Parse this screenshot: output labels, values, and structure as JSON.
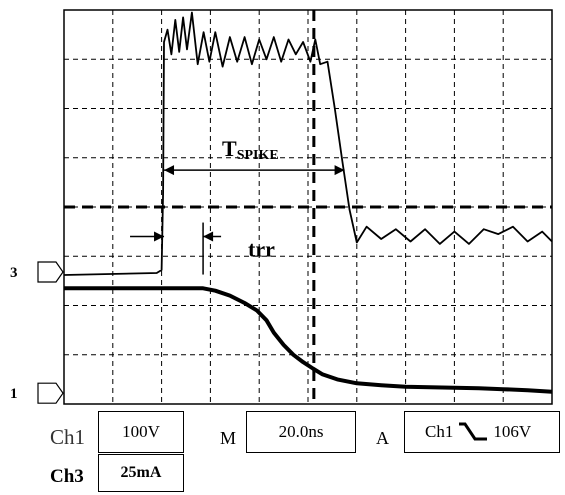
{
  "chart_data": {
    "type": "line",
    "title": "",
    "xlabel": "",
    "ylabel": "",
    "grid": true,
    "grid_divisions": {
      "x": 10,
      "y": 8
    },
    "xlim": [
      0,
      10
    ],
    "ylim": [
      0,
      8
    ],
    "channel_markers": [
      {
        "label": "3",
        "y": 2.68
      },
      {
        "label": "1",
        "y": 0.22
      }
    ],
    "series": [
      {
        "x": [
          0,
          1.9,
          2.0,
          2.03,
          2.05,
          2.12,
          2.2,
          2.28,
          2.36,
          2.44,
          2.52,
          2.62,
          2.74,
          2.86,
          2.98,
          3.1,
          3.25,
          3.4,
          3.55,
          3.7,
          3.85,
          4.0,
          4.15,
          4.3,
          4.45,
          4.6,
          4.75,
          4.9,
          5.05,
          5.15,
          5.25,
          5.4,
          5.55,
          5.7,
          5.85,
          6.0,
          6.2,
          6.5,
          6.8,
          7.1,
          7.4,
          7.7,
          8.0,
          8.3,
          8.6,
          8.9,
          9.2,
          9.5,
          9.8,
          10.0
        ],
        "y": [
          2.62,
          2.66,
          2.72,
          4.3,
          7.35,
          7.6,
          7.1,
          7.8,
          7.15,
          7.85,
          7.2,
          7.95,
          6.9,
          7.55,
          6.95,
          7.55,
          6.85,
          7.45,
          6.95,
          7.45,
          6.9,
          7.4,
          7.0,
          7.45,
          6.95,
          7.4,
          7.1,
          7.35,
          6.95,
          7.4,
          6.9,
          6.95,
          6.0,
          4.95,
          3.95,
          3.28,
          3.6,
          3.35,
          3.55,
          3.3,
          3.55,
          3.25,
          3.5,
          3.25,
          3.55,
          3.45,
          3.6,
          3.3,
          3.5,
          3.3
        ]
      },
      {
        "x": [
          0,
          0.5,
          1.0,
          1.5,
          2.0,
          2.5,
          2.85,
          3.1,
          3.4,
          3.7,
          3.95,
          4.15,
          4.3,
          4.5,
          4.7,
          4.9,
          5.1,
          5.3,
          5.6,
          6.0,
          6.5,
          7.0,
          7.5,
          8.0,
          8.5,
          9.0,
          9.5,
          10.0
        ],
        "y": [
          2.35,
          2.35,
          2.35,
          2.35,
          2.35,
          2.35,
          2.35,
          2.3,
          2.2,
          2.05,
          1.9,
          1.7,
          1.45,
          1.2,
          1.0,
          0.85,
          0.72,
          0.6,
          0.5,
          0.42,
          0.38,
          0.35,
          0.34,
          0.33,
          0.32,
          0.3,
          0.28,
          0.25
        ]
      }
    ],
    "cursors": {
      "vertical_dashed_x": 5.12,
      "horizontal_dashed_y": 4.0
    },
    "annotations": [
      {
        "text": "T",
        "sub": "SPIKE",
        "from_x": 2.05,
        "to_x": 5.75,
        "y": 4.75
      },
      {
        "text": "trr",
        "from_x": 2.05,
        "to_x": 2.85,
        "y": 3.4
      }
    ]
  },
  "readouts": {
    "ch1_label": "Ch1",
    "ch1_value": "100V",
    "ch3_label": "Ch3",
    "ch3_value": "25mA",
    "m_label": "M",
    "m_value": "20.0ns",
    "a_label": "A",
    "trigger_channel": "Ch1",
    "trigger_value": "106V"
  }
}
